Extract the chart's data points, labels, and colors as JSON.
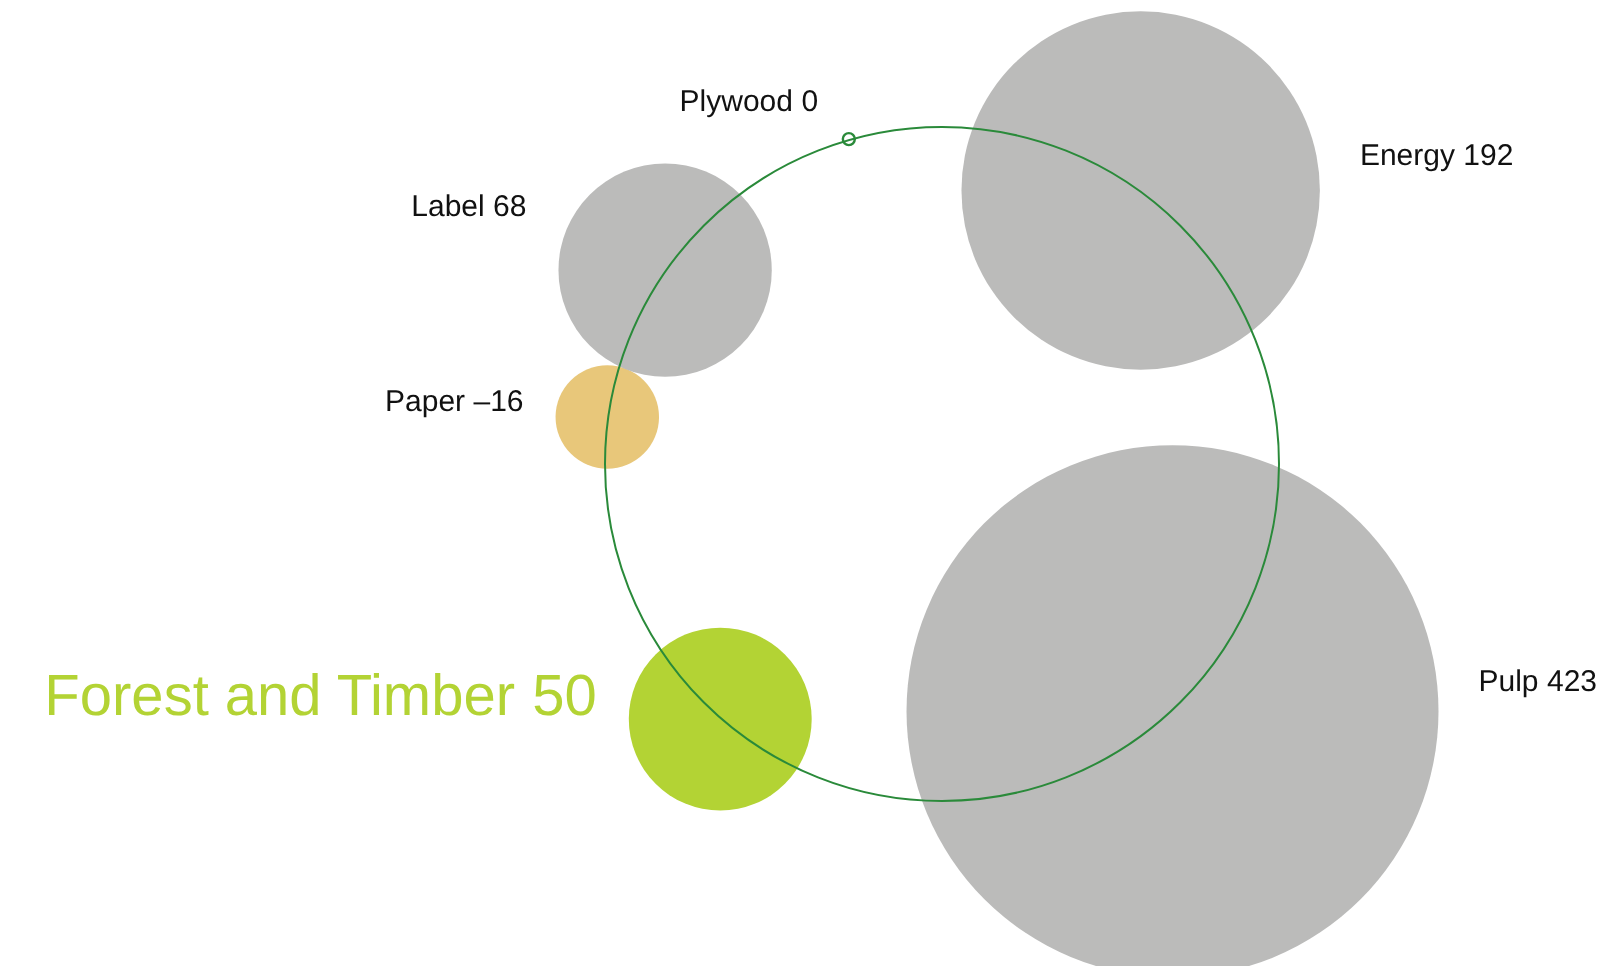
{
  "chart_data": {
    "type": "other",
    "categories": [
      "Plywood",
      "Energy",
      "Pulp",
      "Forest and Timber",
      "Paper",
      "Label"
    ],
    "values": [
      0,
      192,
      423,
      50,
      -16,
      68
    ],
    "value_labels": [
      "0",
      "192",
      "423",
      "50",
      "–16",
      "68"
    ],
    "data_labels": true,
    "colors": [
      "#ffffff",
      "#bbbbba",
      "#bbbbba",
      "#b3d334",
      "#e8c77a",
      "#bbbbba"
    ]
  }
}
